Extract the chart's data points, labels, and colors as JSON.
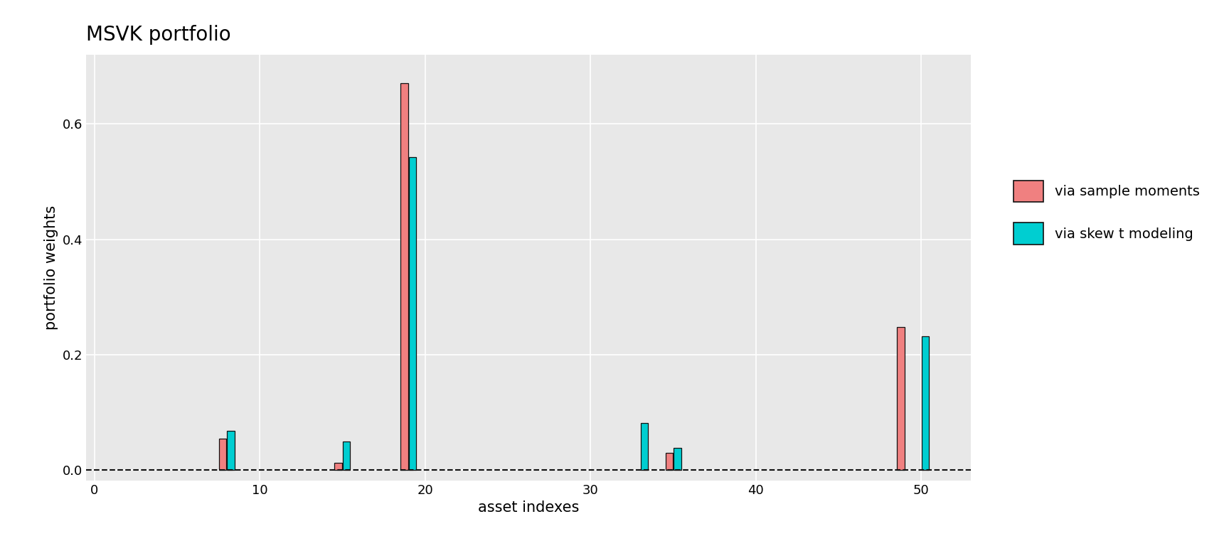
{
  "title": "MSVK portfolio",
  "xlabel": "asset indexes",
  "ylabel": "portfolio weights",
  "background_color": "#E8E8E8",
  "color_sample": "#F08080",
  "color_skew": "#00CED1",
  "bar_edge_color": "#111111",
  "dashed_line_color": "#111111",
  "legend_labels": [
    "via sample moments",
    "via skew t modeling"
  ],
  "xlim": [
    -0.5,
    53
  ],
  "ylim": [
    -0.018,
    0.72
  ],
  "xticks": [
    0,
    10,
    20,
    30,
    40,
    50
  ],
  "yticks": [
    0.0,
    0.2,
    0.4,
    0.6
  ],
  "bar_width": 0.45,
  "series1_positions": [
    8,
    15,
    19,
    35,
    49
  ],
  "series1_values": [
    0.055,
    0.012,
    0.67,
    0.03,
    0.248
  ],
  "series2_positions": [
    8,
    15,
    19,
    33,
    35,
    50
  ],
  "series2_values": [
    0.068,
    0.05,
    0.542,
    0.082,
    0.038,
    0.232
  ],
  "title_fontsize": 20,
  "axis_fontsize": 15,
  "tick_fontsize": 13,
  "legend_fontsize": 14,
  "grid_color": "white",
  "grid_linewidth": 1.2
}
